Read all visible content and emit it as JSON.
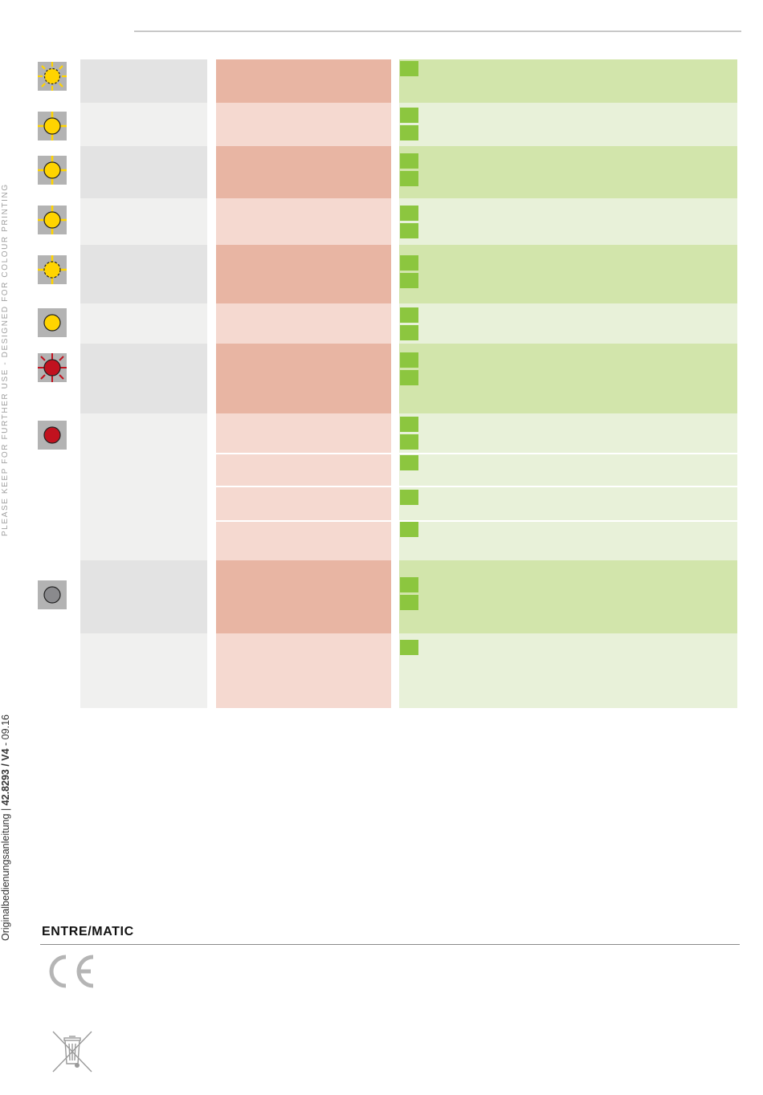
{
  "sidebar": {
    "keep_notice": "PLEASE KEEP FOR FURTHER USE - DESIGNED FOR COLOUR PRINTING",
    "doc_title": "Originalbedienungsanleitung",
    "doc_number": "42.8293 / V4",
    "doc_date": "09.16"
  },
  "footer": {
    "brand": "ENTRE/MATIC",
    "ce_mark": "CE"
  },
  "colors": {
    "led_yellow": "#ffd400",
    "led_red": "#c1121f",
    "led_grey": "#8a8a8d",
    "checkbox_green": "#8cc63f",
    "icon_tile": "#b3b3b3"
  },
  "table": {
    "rows": [
      {
        "icon": "led-yellow-blink-dashed-icon",
        "checks": 1
      },
      {
        "icon": "led-yellow-blink-icon",
        "checks": 2
      },
      {
        "icon": "led-yellow-blink-icon",
        "checks": 2
      },
      {
        "icon": "led-yellow-blink-icon",
        "checks": 2
      },
      {
        "icon": "led-yellow-blink-dashed-icon",
        "checks": 2
      },
      {
        "icon": "led-yellow-steady-icon",
        "checks": 2
      },
      {
        "icon": "led-red-blink-icon",
        "checks": 2
      },
      {
        "icon": "led-red-steady-icon",
        "checks": [
          2,
          1,
          1,
          1
        ]
      },
      {
        "icon": "led-off-icon",
        "checks": 2
      },
      {
        "icon": "",
        "checks": 1
      }
    ]
  }
}
